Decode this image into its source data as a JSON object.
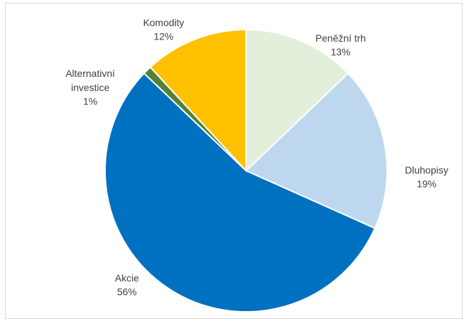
{
  "chart_data": {
    "type": "pie",
    "categories": [
      "Peněžní trh",
      "Dluhopisy",
      "Akcie",
      "Alternativní investice",
      "Komodity"
    ],
    "values": [
      13,
      19,
      56,
      1,
      12
    ],
    "value_labels": [
      "13%",
      "19%",
      "56%",
      "1%",
      "12%"
    ],
    "colors": [
      "#e2efda",
      "#bdd7ee",
      "#0070c0",
      "#548235",
      "#ffc000"
    ]
  }
}
